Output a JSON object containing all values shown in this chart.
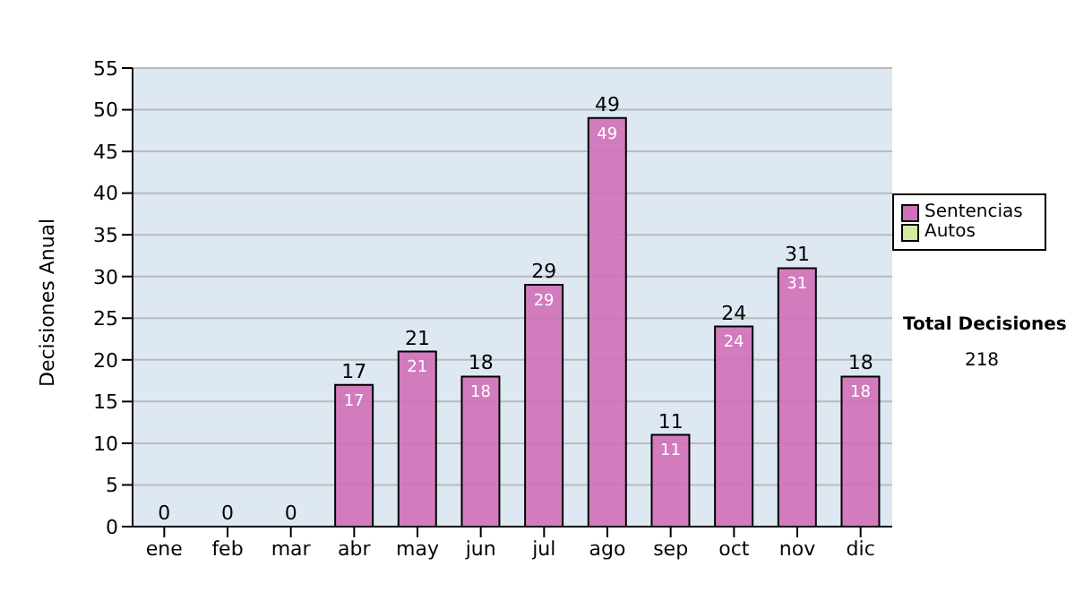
{
  "chart_data": {
    "type": "bar",
    "stacked": true,
    "ylabel": "Decisiones Anual",
    "categories": [
      "ene",
      "feb",
      "mar",
      "abr",
      "may",
      "jun",
      "jul",
      "ago",
      "sep",
      "oct",
      "nov",
      "dic"
    ],
    "series": [
      {
        "name": "Sentencias",
        "color": "#d070b8",
        "values": [
          0,
          0,
          0,
          17,
          21,
          18,
          29,
          49,
          11,
          24,
          31,
          18
        ],
        "value_labels": [
          null,
          null,
          null,
          "17",
          "21",
          "18",
          "29",
          "49",
          "11",
          "24",
          "31",
          "18"
        ]
      },
      {
        "name": "Autos",
        "color": "#d4eaa0",
        "values": [
          0,
          0,
          0,
          0,
          0,
          0,
          0,
          0,
          0,
          0,
          0,
          0
        ]
      }
    ],
    "totals": [
      "0",
      "0",
      "0",
      "17",
      "21",
      "18",
      "29",
      "49",
      "11",
      "24",
      "31",
      "18"
    ],
    "ylim": [
      0,
      55
    ],
    "yticks": [
      0,
      5,
      10,
      15,
      20,
      25,
      30,
      35,
      40,
      45,
      50,
      55
    ],
    "grid": "y",
    "legend": "right",
    "annotations": [
      "Total Decisiones",
      "218"
    ]
  }
}
